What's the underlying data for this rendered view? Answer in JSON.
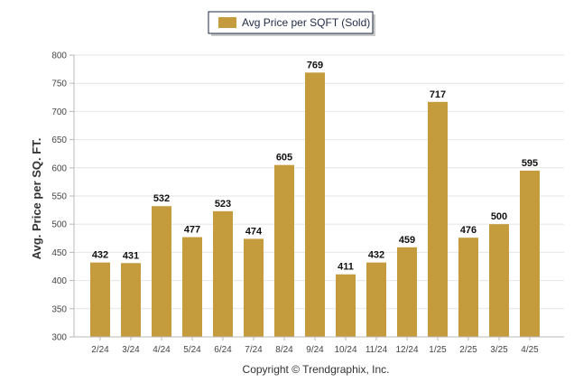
{
  "copyright": "Copyright © Trendgraphix, Inc.",
  "chart_data": {
    "type": "bar",
    "title": "",
    "xlabel": "",
    "ylabel": "Avg. Price per SQ. FT.",
    "ylim": [
      300,
      800
    ],
    "yticks": [
      300,
      350,
      400,
      450,
      500,
      550,
      600,
      650,
      700,
      750,
      800
    ],
    "grid": true,
    "legend_placement": "top-center",
    "categories": [
      "2/24",
      "3/24",
      "4/24",
      "5/24",
      "6/24",
      "7/24",
      "8/24",
      "9/24",
      "10/24",
      "11/24",
      "12/24",
      "1/25",
      "2/25",
      "3/25",
      "4/25"
    ],
    "series": [
      {
        "name": "Avg Price per SQFT (Sold)",
        "color": "#C49B3D",
        "values": [
          432,
          431,
          532,
          477,
          523,
          474,
          605,
          769,
          411,
          432,
          459,
          717,
          476,
          500,
          595
        ]
      }
    ]
  }
}
